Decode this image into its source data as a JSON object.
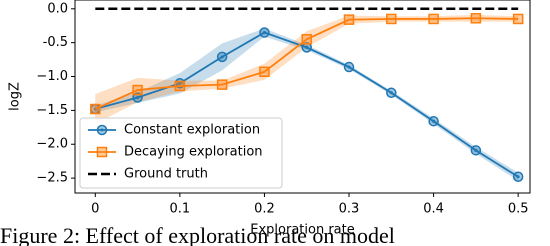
{
  "chart_data": {
    "type": "line",
    "caption": "Figure 2: Effect of exploration rate on model",
    "xlabel": "Exploration rate",
    "ylabel": "logZ",
    "x": [
      0,
      0.05,
      0.1,
      0.15,
      0.2,
      0.25,
      0.3,
      0.35,
      0.4,
      0.45,
      0.5
    ],
    "series": [
      {
        "name": "Constant exploration",
        "color": "#1f77b4",
        "marker": "circle",
        "values": [
          -1.48,
          -1.31,
          -1.1,
          -0.71,
          -0.35,
          -0.57,
          -0.86,
          -1.24,
          -1.66,
          -2.09,
          -2.48
        ],
        "error": [
          0.05,
          0.08,
          0.15,
          0.2,
          0.06,
          0.04,
          0.03,
          0.03,
          0.04,
          0.05,
          0.06
        ]
      },
      {
        "name": "Decaying exploration",
        "color": "#ff7f0e",
        "marker": "square",
        "values": [
          -1.48,
          -1.2,
          -1.14,
          -1.12,
          -0.93,
          -0.45,
          -0.16,
          -0.15,
          -0.15,
          -0.14,
          -0.15
        ],
        "error": [
          0.22,
          0.18,
          0.08,
          0.06,
          0.12,
          0.12,
          0.06,
          0.04,
          0.04,
          0.05,
          0.04
        ]
      }
    ],
    "reference": {
      "name": "Ground truth",
      "value": 0,
      "color": "#000000"
    },
    "xlim": [
      -0.024,
      0.514
    ],
    "ylim": [
      -2.72,
      0.13
    ],
    "xticks": [
      0,
      0.1,
      0.2,
      0.3,
      0.4,
      0.5
    ],
    "yticks": [
      {
        "value": 0,
        "label": "0.0"
      },
      -0.5,
      {
        "value": -1,
        "label": "−1.0"
      },
      {
        "value": -1.5,
        "label": "−1.5"
      },
      {
        "value": -2,
        "label": "−2.0"
      },
      {
        "value": -2.5,
        "label": "−2.5"
      }
    ],
    "legend": "lower left",
    "grid": false
  }
}
